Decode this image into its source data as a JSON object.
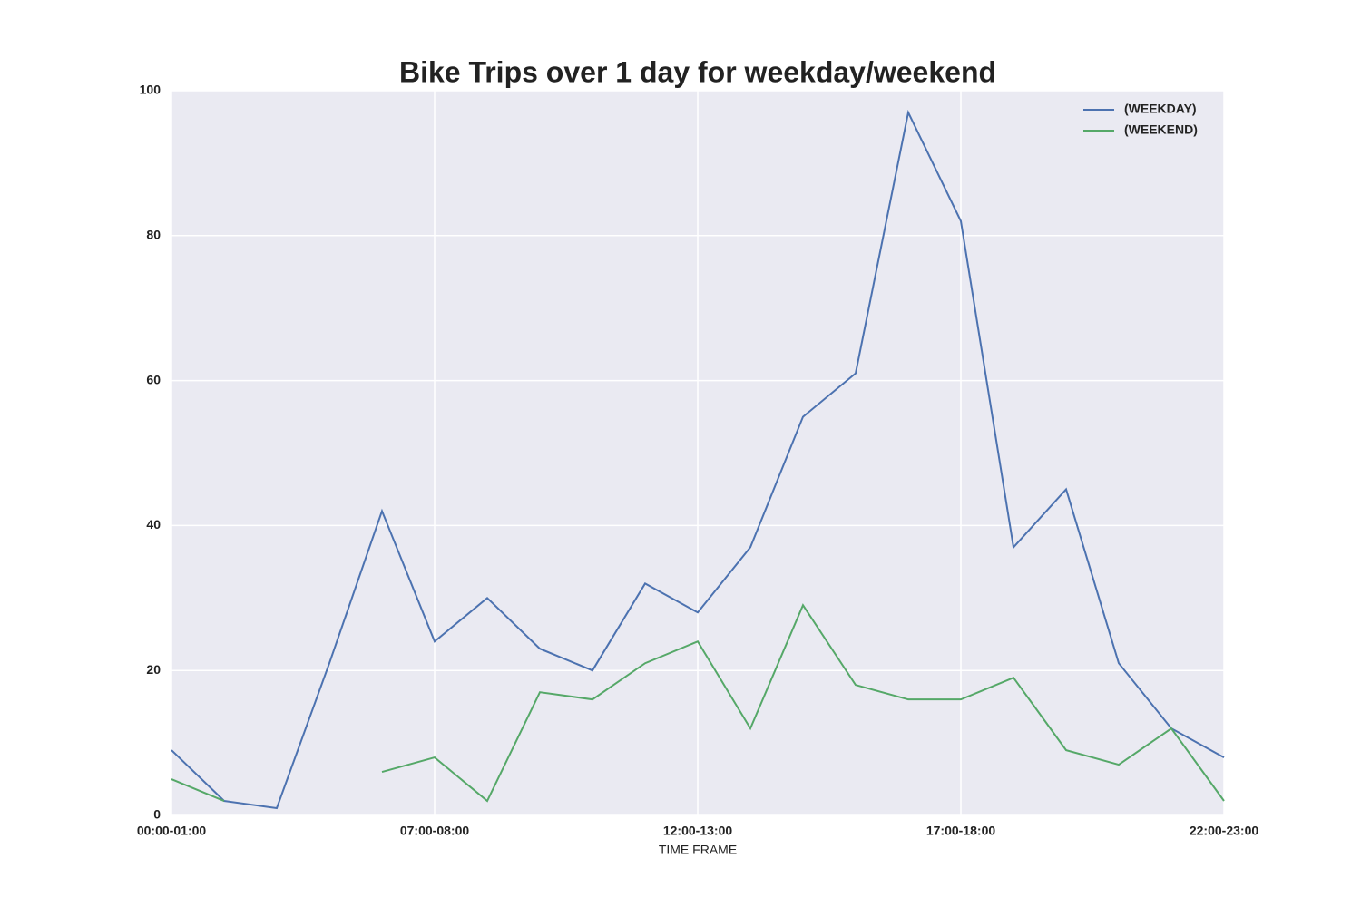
{
  "chart_data": {
    "type": "line",
    "title": "Bike Trips over 1 day for weekday/weekend",
    "x_label": "TIME FRAME",
    "categories": [
      "00:00-01:00",
      null,
      null,
      null,
      null,
      "07:00-08:00",
      null,
      null,
      null,
      null,
      "12:00-13:00",
      null,
      null,
      null,
      null,
      "17:00-18:00",
      null,
      null,
      null,
      null,
      "22:00-23:00"
    ],
    "series": [
      {
        "name": "(WEEKDAY)",
        "color": "#4c72b0",
        "values": [
          9,
          2,
          1,
          21,
          42,
          24,
          30,
          23,
          20,
          32,
          28,
          37,
          55,
          61,
          97,
          82,
          37,
          45,
          21,
          12,
          8
        ]
      },
      {
        "name": "(WEEKEND)",
        "color": "#55a868",
        "values": [
          5,
          2,
          null,
          null,
          6,
          8,
          2,
          17,
          16,
          21,
          24,
          12,
          29,
          18,
          16,
          16,
          19,
          9,
          7,
          12,
          2
        ]
      }
    ],
    "ylim": [
      0,
      100
    ],
    "yticks": [
      0,
      20,
      40,
      60,
      80,
      100
    ],
    "grid": true,
    "legend": "upper right"
  }
}
